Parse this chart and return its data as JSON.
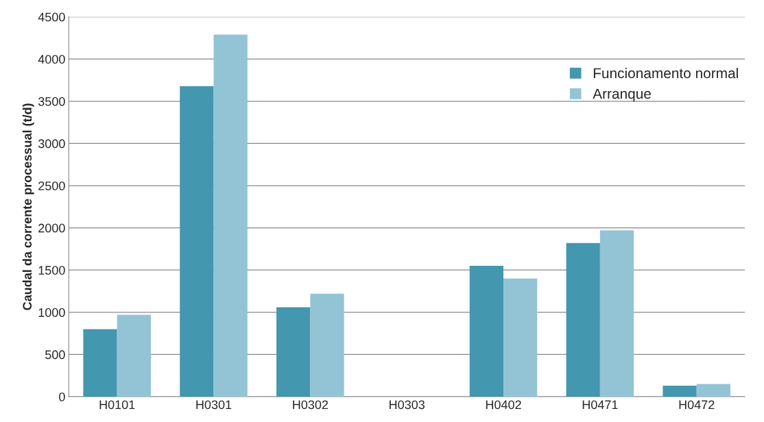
{
  "chart_data": {
    "type": "bar",
    "ylabel": "Caudal da corrente processual (t/d)",
    "categories": [
      "H0101",
      "H0301",
      "H0302",
      "H0303",
      "H0402",
      "H0471",
      "H0472"
    ],
    "series": [
      {
        "name": "Funcionamento normal",
        "color": "#4397ae",
        "values": [
          800,
          3680,
          1060,
          0,
          1550,
          1820,
          130
        ]
      },
      {
        "name": "Arranque",
        "color": "#93c4d6",
        "values": [
          970,
          4290,
          1220,
          0,
          1400,
          1970,
          150
        ]
      }
    ],
    "ylim": [
      0,
      4500
    ],
    "yticks": [
      0,
      500,
      1000,
      1500,
      2000,
      2500,
      3000,
      3500,
      4000,
      4500
    ],
    "grid": "y",
    "legend": "top right"
  }
}
